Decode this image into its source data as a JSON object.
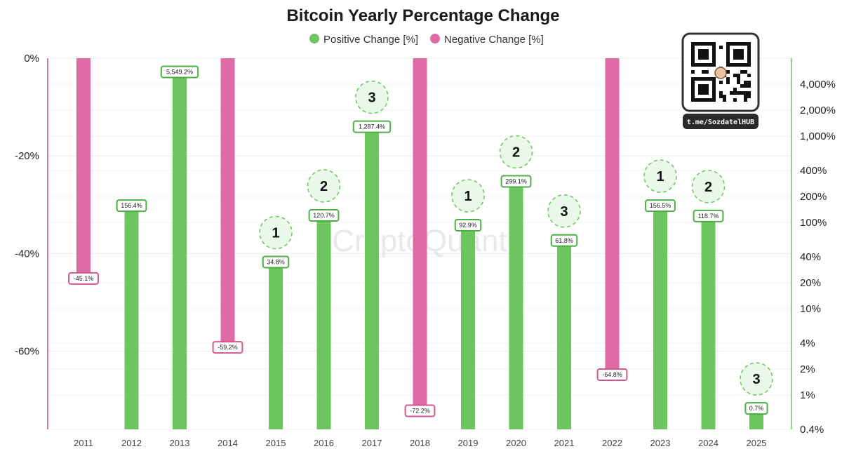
{
  "chart_data": {
    "type": "bar",
    "title": "Bitcoin Yearly Percentage Change",
    "legend": [
      {
        "name": "Positive Change [%]",
        "color": "#6cc55f"
      },
      {
        "name": "Negative Change [%]",
        "color": "#e06aa6"
      }
    ],
    "legend_position": "top-center",
    "categories": [
      "2011",
      "2012",
      "2013",
      "2014",
      "2015",
      "2016",
      "2017",
      "2018",
      "2019",
      "2020",
      "2021",
      "2022",
      "2023",
      "2024",
      "2025"
    ],
    "series": [
      {
        "name": "Positive Change [%]",
        "values": [
          null,
          156.4,
          5549.2,
          null,
          34.8,
          120.7,
          1287.4,
          null,
          92.9,
          299.1,
          61.8,
          null,
          156.5,
          118.7,
          0.7
        ]
      },
      {
        "name": "Negative Change [%]",
        "values": [
          -45.1,
          null,
          null,
          -59.2,
          null,
          null,
          null,
          -72.2,
          null,
          null,
          null,
          -64.8,
          null,
          null,
          null
        ]
      }
    ],
    "data_labels": [
      "-45.1%",
      "156.4%",
      "5,549.2%",
      "-59.2%",
      "34.8%",
      "120.7%",
      "1,287.4%",
      "-72.2%",
      "92.9%",
      "299.1%",
      "61.8%",
      "-64.8%",
      "156.5%",
      "118.7%",
      "0.7%"
    ],
    "cycle_badges": [
      null,
      null,
      null,
      null,
      "1",
      "2",
      "3",
      null,
      "1",
      "2",
      "3",
      null,
      "1",
      "2",
      "3"
    ],
    "left_axis": {
      "ylim": [
        -76,
        0
      ],
      "ticks": [
        0,
        -20,
        -40,
        -60
      ],
      "tick_labels": [
        "0%",
        "-20%",
        "-40%",
        "-60%"
      ]
    },
    "right_axis": {
      "scale": "log",
      "ylim": [
        0.4,
        8000
      ],
      "ticks": [
        4000,
        2000,
        1000,
        400,
        200,
        100,
        40,
        20,
        10,
        4,
        2,
        1,
        0.4
      ],
      "tick_labels": [
        "4,000%",
        "2,000%",
        "1,000%",
        "400%",
        "200%",
        "100%",
        "40%",
        "20%",
        "10%",
        "4%",
        "2%",
        "1%",
        "0.4%"
      ]
    },
    "grid": true,
    "watermark": "CryptoQuant"
  },
  "qr": {
    "caption": "t.me/SozdatelHUB"
  },
  "colors": {
    "positive": "#6cc55f",
    "negative": "#e06aa6",
    "label_border_pos": "#4caf43",
    "label_border_neg": "#d0578f",
    "badge_fill": "#eaf8ea",
    "badge_stroke": "#6cc55f"
  }
}
